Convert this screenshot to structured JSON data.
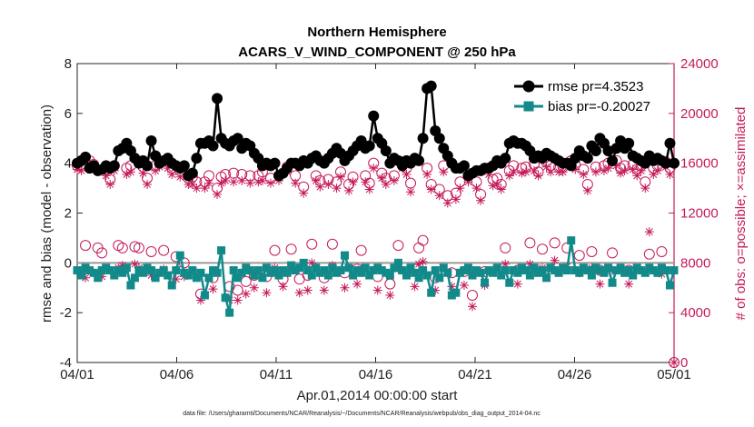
{
  "chart_data": {
    "type": "line",
    "title": "Northern Hemisphere",
    "subtitle": "ACARS_V_WIND_COMPONENT @ 250 hPa",
    "xlabel": "Apr.01,2014 00:00:00 start",
    "ylabel": "rmse and bias (model - observation)",
    "y2label": "# of obs: o=possible; ×=assimilated",
    "xlim": [
      0,
      30
    ],
    "ylim": [
      -4,
      8
    ],
    "y2lim": [
      0,
      24000
    ],
    "x_ticks": [
      0,
      5,
      10,
      15,
      20,
      25,
      30
    ],
    "x_tick_labels": [
      "04/01",
      "04/06",
      "04/11",
      "04/16",
      "04/21",
      "04/26",
      "05/01"
    ],
    "y_ticks": [
      -4,
      -2,
      0,
      2,
      4,
      6,
      8
    ],
    "y_tick_labels": [
      "-4",
      "-2",
      "0",
      "2",
      "4",
      "6",
      "8"
    ],
    "y2_ticks": [
      0,
      4000,
      8000,
      12000,
      16000,
      20000,
      24000
    ],
    "y2_tick_labels": [
      "0",
      "4000",
      "8000",
      "12000",
      "16000",
      "20000",
      "24000"
    ],
    "legend_position": "top-right",
    "footnote": "data file: /Users/gharamti/Documents/NCAR/Reanalysis/~/Documents/NCAR/Reanalysis/webpub/obs_diag_output_2014-04.nc",
    "colors": {
      "rmse": "#000000",
      "bias": "#128a8a",
      "obs": "#c51b5b"
    },
    "series": [
      {
        "name": "rmse pr=4.3523",
        "values": [
          4.0,
          4.1,
          4.25,
          3.8,
          3.9,
          3.7,
          3.75,
          3.9,
          3.8,
          3.9,
          4.5,
          4.6,
          4.8,
          4.5,
          4.2,
          4.0,
          4.1,
          3.9,
          4.9,
          4.3,
          4.0,
          4.1,
          4.2,
          4.0,
          3.9,
          3.8,
          3.9,
          3.5,
          3.6,
          4.2,
          4.8,
          4.8,
          4.9,
          4.7,
          6.6,
          5.0,
          4.8,
          4.7,
          4.9,
          5.0,
          4.6,
          4.8,
          4.7,
          4.4,
          4.2,
          3.9,
          4.0,
          3.9,
          4.0,
          3.5,
          3.6,
          3.8,
          4.0,
          4.0,
          3.9,
          4.1,
          4.0,
          4.2,
          4.3,
          4.1,
          4.0,
          4.2,
          4.4,
          4.6,
          4.4,
          4.1,
          4.3,
          4.5,
          4.7,
          4.9,
          4.6,
          4.7,
          5.9,
          5.0,
          4.8,
          4.5,
          4.0,
          4.2,
          4.1,
          3.9,
          4.1,
          4.0,
          4.2,
          4.1,
          5.0,
          7.0,
          7.1,
          5.3,
          5.0,
          4.6,
          4.3,
          4.0,
          3.8,
          3.8,
          3.9,
          3.5,
          3.6,
          3.7,
          3.7,
          3.8,
          3.8,
          3.9,
          4.1,
          4.0,
          4.2,
          4.8,
          4.9,
          4.8,
          4.8,
          4.7,
          4.5,
          4.2,
          4.3,
          4.2,
          4.4,
          4.3,
          4.2,
          4.1,
          4.0,
          4.0,
          3.9,
          4.2,
          4.5,
          4.3,
          4.2,
          4.7,
          4.5,
          5.0,
          4.8,
          4.5,
          4.1,
          4.6,
          4.9,
          4.6,
          4.8,
          4.3,
          4.2,
          4.1,
          4.0,
          4.3,
          4.1,
          4.2,
          4.1,
          4.0,
          4.8,
          4.0
        ]
      },
      {
        "name": "bias pr=-0.20027",
        "values": [
          -0.3,
          -0.5,
          -0.2,
          -0.3,
          -0.4,
          -0.6,
          -0.3,
          -0.2,
          -0.3,
          -0.5,
          -0.3,
          -0.4,
          -0.2,
          -0.9,
          -0.6,
          -0.3,
          -0.4,
          -0.2,
          -0.3,
          -0.6,
          -0.4,
          -0.3,
          -0.5,
          -0.9,
          -0.3,
          0.3,
          -0.4,
          -0.5,
          -0.3,
          -0.6,
          -0.4,
          -1.3,
          -0.6,
          -0.3,
          -0.4,
          0.5,
          -1.4,
          -2.0,
          -0.3,
          -0.6,
          -0.4,
          -0.2,
          -0.3,
          -0.5,
          -0.3,
          -0.6,
          -0.2,
          -0.4,
          -0.3,
          -0.5,
          -0.3,
          -0.4,
          -0.1,
          -0.3,
          -0.2,
          0.0,
          -0.3,
          -0.5,
          -0.2,
          -0.4,
          -0.3,
          -0.5,
          -0.2,
          -0.4,
          -0.3,
          0.3,
          -0.2,
          -0.5,
          -0.3,
          -0.4,
          -0.2,
          -0.5,
          -0.3,
          -0.2,
          -0.3,
          -0.4,
          -0.5,
          -0.2,
          0.0,
          -0.3,
          -0.5,
          -0.2,
          -0.4,
          -0.6,
          -0.3,
          -0.5,
          -1.2,
          -0.3,
          -0.6,
          -0.2,
          -0.4,
          -1.3,
          -1.2,
          -0.4,
          -0.3,
          -0.2,
          -0.5,
          -0.3,
          -0.4,
          -0.8,
          -0.3,
          -0.4,
          -0.2,
          -0.5,
          -0.3,
          -0.8,
          -0.3,
          -0.4,
          -0.2,
          -0.3,
          -0.5,
          -0.2,
          -0.4,
          -0.3,
          -0.6,
          -0.2,
          -0.3,
          -0.4,
          -0.2,
          -0.3,
          0.9,
          -0.3,
          -0.4,
          -0.2,
          -0.3,
          -0.5,
          -0.2,
          -0.3,
          -0.4,
          -0.2,
          -0.8,
          -0.3,
          -0.2,
          -0.4,
          -0.3,
          -0.5,
          -0.2,
          -0.3,
          -0.4,
          -0.2,
          -0.3,
          -0.4,
          -0.2,
          -0.3,
          -0.9,
          -0.3
        ]
      },
      {
        "name": "possible",
        "axis": "right",
        "marker": "circle",
        "values": [
          15800,
          15900,
          9400,
          16200,
          15900,
          9200,
          8800,
          15500,
          14700,
          15800,
          9400,
          9200,
          15600,
          15800,
          9300,
          9200,
          15700,
          14800,
          8900,
          15800,
          16000,
          9000,
          16100,
          15600,
          8500,
          15400,
          8000,
          14800,
          14900,
          14500,
          5500,
          14500,
          15000,
          6800,
          14000,
          14900,
          15100,
          6100,
          15200,
          5800,
          15100,
          6500,
          15000,
          7000,
          15000,
          15300,
          6900,
          14800,
          9000,
          15000,
          6700,
          15700,
          9100,
          15000,
          6700,
          14100,
          7000,
          9500,
          15000,
          14600,
          6800,
          14700,
          9500,
          14500,
          15300,
          7200,
          14300,
          14900,
          7500,
          9000,
          15000,
          14400,
          16000,
          6900,
          15200,
          14800,
          6300,
          15000,
          9400,
          16100,
          15600,
          14400,
          7500,
          9200,
          9800,
          15600,
          14300,
          6800,
          13900,
          15800,
          13400,
          7200,
          13600,
          14500,
          7300,
          15000,
          5400,
          14500,
          13500,
          7300,
          15600,
          14700,
          14800,
          14300,
          9200,
          15400,
          15800,
          7400,
          15600,
          15700,
          9600,
          15900,
          15300,
          9100,
          16100,
          15800,
          9600,
          15700,
          15700,
          9200,
          16200,
          15900,
          8600,
          15500,
          14300,
          8900,
          15700,
          7400,
          15800,
          16000,
          8800,
          16200,
          15600,
          15800,
          7400,
          15900,
          15500,
          15800,
          14500,
          8700,
          15600,
          15800,
          8900,
          16100,
          15600,
          0
        ]
      },
      {
        "name": "assimilated",
        "axis": "right",
        "marker": "asterisk",
        "values": [
          15500,
          15400,
          6800,
          15900,
          15600,
          7000,
          6900,
          15000,
          14300,
          15400,
          7600,
          7800,
          15100,
          15300,
          7900,
          7600,
          15200,
          14300,
          7000,
          15400,
          15700,
          7500,
          15600,
          15100,
          6700,
          14900,
          6900,
          14300,
          14300,
          14000,
          5000,
          14000,
          14400,
          5900,
          13500,
          14400,
          14600,
          5000,
          14500,
          5000,
          14600,
          5500,
          14400,
          6000,
          14500,
          14600,
          5600,
          14400,
          7600,
          14600,
          6100,
          15300,
          7700,
          14400,
          5600,
          13600,
          5800,
          8000,
          14600,
          14100,
          5800,
          14300,
          7800,
          14000,
          14900,
          6000,
          13800,
          14500,
          6300,
          7500,
          14500,
          13900,
          15600,
          5800,
          14800,
          14300,
          5400,
          14600,
          7500,
          15600,
          15100,
          13700,
          6100,
          7900,
          8100,
          15100,
          13900,
          5800,
          13400,
          15300,
          12800,
          6100,
          13100,
          14000,
          6200,
          14500,
          4500,
          14000,
          13000,
          6200,
          15100,
          14200,
          14300,
          13900,
          7900,
          15000,
          15300,
          6300,
          15200,
          15300,
          7900,
          15400,
          15000,
          7600,
          15700,
          15300,
          8200,
          15300,
          15300,
          7700,
          15800,
          15500,
          7200,
          15100,
          13800,
          7600,
          15300,
          6300,
          15400,
          15600,
          7400,
          15800,
          15200,
          15400,
          6300,
          15500,
          15000,
          15400,
          14000,
          10500,
          15100,
          15400,
          7100,
          15700,
          15100,
          0
        ]
      }
    ]
  }
}
